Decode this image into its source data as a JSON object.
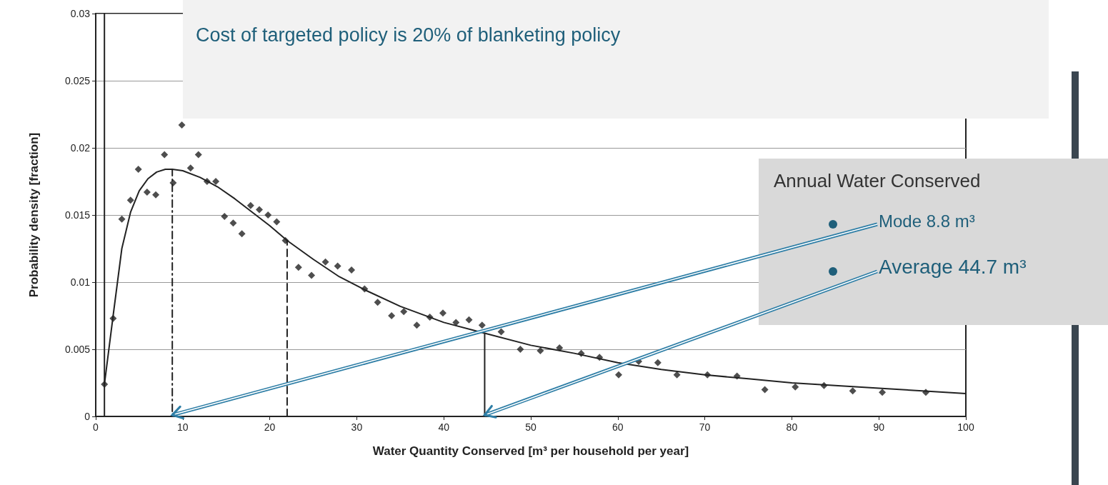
{
  "chart_data": {
    "type": "scatter",
    "xlabel": "Water Quantity Conserved [m³ per household per year]",
    "ylabel": "Probability density [fraction]",
    "xlim": [
      0,
      100
    ],
    "xticks": [
      0,
      10,
      20,
      30,
      40,
      50,
      60,
      70,
      80,
      90,
      100
    ],
    "ylim": [
      0,
      0.03
    ],
    "yticks": [
      0,
      0.005,
      0.01,
      0.015,
      0.02,
      0.025,
      0.03
    ],
    "grid": "y",
    "series": [
      {
        "color": "#222222",
        "marker": "diamond",
        "x": [
          1,
          2,
          3,
          4,
          4.9,
          5.9,
          6.9,
          7.9,
          8.9,
          9.9,
          10.9,
          11.8,
          12.8,
          13.8,
          14.8,
          15.8,
          16.8,
          17.8,
          18.8,
          19.8,
          20.8,
          21.8,
          23.3,
          24.8,
          26.4,
          27.8,
          29.4,
          30.9,
          32.4,
          34,
          35.4,
          36.9,
          38.4,
          39.9,
          41.4,
          42.9,
          44.4,
          46.6,
          48.8,
          51.1,
          53.3,
          55.8,
          57.9,
          60.1,
          62.4,
          64.6,
          66.8,
          70.3,
          73.7,
          76.9,
          80.4,
          83.7,
          87,
          90.4,
          95.4
        ],
        "values": [
          0.0024,
          0.0073,
          0.0147,
          0.0161,
          0.0184,
          0.0167,
          0.0165,
          0.0195,
          0.0174,
          0.0217,
          0.0185,
          0.0195,
          0.0175,
          0.0175,
          0.0149,
          0.0144,
          0.0136,
          0.0157,
          0.0154,
          0.015,
          0.0145,
          0.0131,
          0.0111,
          0.0105,
          0.0115,
          0.0112,
          0.0109,
          0.0095,
          0.0085,
          0.0075,
          0.0078,
          0.0068,
          0.0074,
          0.0077,
          0.007,
          0.0072,
          0.0068,
          0.0063,
          0.005,
          0.0049,
          0.0051,
          0.0047,
          0.0044,
          0.0031,
          0.0041,
          0.004,
          0.0031,
          0.0031,
          0.003,
          0.002,
          0.0022,
          0.0023,
          0.0019,
          0.0018,
          0.0018
        ]
      },
      {
        "type": "line",
        "color": "#222222",
        "marker": "none",
        "line_style": "solid",
        "x": [
          1,
          2,
          3,
          4,
          5,
          6,
          7,
          8,
          8.8,
          10,
          12,
          14,
          16,
          18,
          20,
          22,
          25,
          28,
          31,
          35,
          40,
          44.7,
          50,
          55,
          60,
          65,
          70,
          75,
          80,
          85,
          90,
          95,
          100
        ],
        "values": [
          0.0024,
          0.0075,
          0.0125,
          0.0152,
          0.0168,
          0.0177,
          0.0182,
          0.0184,
          0.0184,
          0.0183,
          0.0178,
          0.0171,
          0.0162,
          0.0152,
          0.0142,
          0.0131,
          0.0117,
          0.0104,
          0.0094,
          0.0082,
          0.007,
          0.0062,
          0.0053,
          0.0047,
          0.004,
          0.0035,
          0.0031,
          0.0028,
          0.0025,
          0.0023,
          0.0021,
          0.0019,
          0.0017
        ]
      },
      {
        "type": "line",
        "color": "#222222",
        "marker": "none",
        "line_style": "dotted",
        "x": [
          8.8,
          8.8
        ],
        "values": [
          0,
          0.0184
        ]
      },
      {
        "type": "line",
        "color": "#222222",
        "marker": "none",
        "line_style": "dashed",
        "x": [
          22,
          22
        ],
        "values": [
          0,
          0.0131
        ]
      },
      {
        "type": "line",
        "color": "#222222",
        "marker": "none",
        "line_style": "solid",
        "x": [
          44.7,
          44.7
        ],
        "values": [
          0,
          0.0062
        ]
      }
    ],
    "ref_lines": [
      {
        "axis": "x",
        "value": 1,
        "color": "#222222"
      }
    ],
    "annotations": [
      "Cost of targeted policy is 20% of blanketing policy",
      "Annual Water Conserved",
      {
        "text": "Mode 8.8 m³",
        "x": 8.8,
        "y": 0
      },
      {
        "text": "Average 44.7 m³",
        "x": 44.7,
        "y": 0
      }
    ]
  }
}
